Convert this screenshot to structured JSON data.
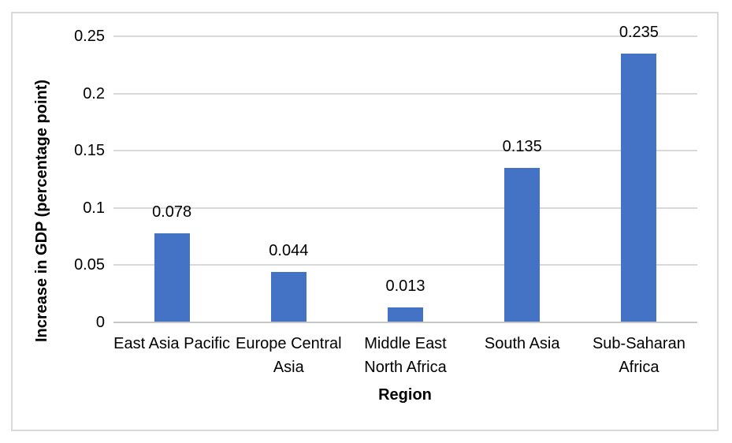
{
  "chart_data": {
    "type": "bar",
    "title": "",
    "xlabel": "Region",
    "ylabel": "Increase in GDP (percentage point)",
    "categories": [
      "East Asia Pacific",
      "Europe Central Asia",
      "Middle East North Africa",
      "South Asia",
      "Sub-Saharan Africa"
    ],
    "category_display_lines": [
      [
        "East Asia Pacific"
      ],
      [
        "Europe Central",
        "Asia"
      ],
      [
        "Middle East",
        "North Africa"
      ],
      [
        "South Asia"
      ],
      [
        "Sub-Saharan",
        "Africa"
      ]
    ],
    "values": [
      0.078,
      0.044,
      0.013,
      0.135,
      0.235
    ],
    "data_labels": [
      "0.078",
      "0.044",
      "0.013",
      "0.135",
      "0.235"
    ],
    "ylim": [
      0,
      0.25
    ],
    "yticks": [
      {
        "value": 0,
        "label": "0"
      },
      {
        "value": 0.05,
        "label": "0.05"
      },
      {
        "value": 0.1,
        "label": "0.1"
      },
      {
        "value": 0.15,
        "label": "0.15"
      },
      {
        "value": 0.2,
        "label": "0.2"
      },
      {
        "value": 0.25,
        "label": "0.25"
      }
    ],
    "grid": true,
    "legend": "none",
    "colors": {
      "bar": "#4472C4",
      "gridline": "#D9D9D9",
      "axis_line": "#C6C6C6",
      "border": "#D9D9D9",
      "text": "#000000"
    }
  }
}
